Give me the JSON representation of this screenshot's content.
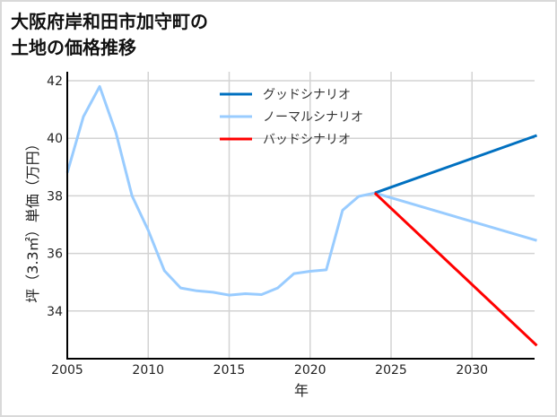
{
  "chart_data": {
    "type": "line",
    "title": "大阪府岸和田市加守町の土地の価格推移",
    "title_lines": [
      "大阪府岸和田市加守町の",
      "土地の価格推移"
    ],
    "xlabel": "年",
    "ylabel": "坪（3.3㎡）単価（万円）",
    "xlim": [
      2005,
      2034
    ],
    "ylim": [
      32.7,
      42.2
    ],
    "x_ticks": [
      2005,
      2010,
      2015,
      2020,
      2025,
      2030
    ],
    "y_ticks": [
      34,
      36,
      38,
      40,
      42
    ],
    "grid": true,
    "legend_position": "upper-center",
    "series": [
      {
        "name": "グッドシナリオ",
        "color": "#0070c0",
        "x": [
          2024,
          2034
        ],
        "values": [
          38.1,
          40.1
        ]
      },
      {
        "name": "ノーマルシナリオ",
        "color": "#99ccff",
        "x": [
          2005,
          2006,
          2007,
          2008,
          2009,
          2010,
          2011,
          2012,
          2013,
          2014,
          2015,
          2016,
          2017,
          2018,
          2019,
          2020,
          2021,
          2022,
          2023,
          2024,
          2034
        ],
        "values": [
          38.8,
          40.75,
          41.8,
          40.2,
          38.0,
          36.8,
          35.4,
          34.8,
          34.7,
          34.65,
          34.55,
          34.6,
          34.57,
          34.8,
          35.3,
          35.38,
          35.43,
          37.5,
          37.98,
          38.1,
          36.45
        ]
      },
      {
        "name": "バッドシナリオ",
        "color": "#ff0000",
        "x": [
          2024,
          2034
        ],
        "values": [
          38.1,
          32.8
        ]
      }
    ]
  }
}
